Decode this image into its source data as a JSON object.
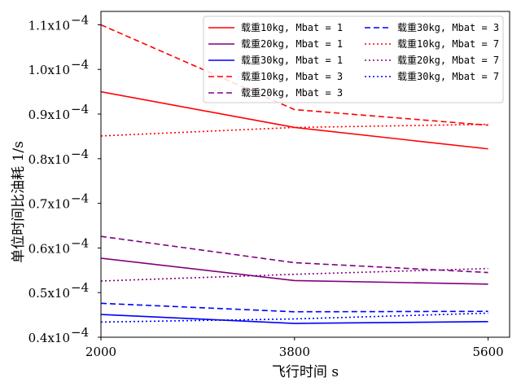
{
  "chart_data": {
    "type": "line",
    "title": "",
    "xlabel": "飞行时间 s",
    "ylabel": "单位时间比油耗 1/s",
    "x": [
      2000,
      3800,
      5600
    ],
    "xlim": [
      2000,
      5800
    ],
    "ylim": [
      0.4,
      1.13
    ],
    "y_tick_values": [
      0.4,
      0.5,
      0.6,
      0.7,
      0.8,
      0.9,
      1.0,
      1.1
    ],
    "y_tick_labels": [
      "0.4x10^-4",
      "0.5x10^-4",
      "0.6x10^-4",
      "0.7x10^-4",
      "0.8x10^-4",
      "0.9x10^-4",
      "1.0x10^-4",
      "1.1x10^-4"
    ],
    "y_tick_mantissas": [
      "0.4x10",
      "0.5x10",
      "0.6x10",
      "0.7x10",
      "0.8x10",
      "0.9x10",
      "1.0x10",
      "1.1x10"
    ],
    "y_tick_exponent": "−4",
    "x_tick_labels": [
      "2000",
      "3800",
      "5600"
    ],
    "y_unit_scale": "1e-4",
    "legend_position": "top-right",
    "grid": false,
    "series": [
      {
        "name": "载重10kg, Mbat = 1",
        "color": "#ff0000",
        "style": "solid",
        "values": [
          0.95,
          0.87,
          0.822
        ]
      },
      {
        "name": "载重20kg, Mbat = 1",
        "color": "#800080",
        "style": "solid",
        "values": [
          0.577,
          0.527,
          0.519
        ]
      },
      {
        "name": "载重30kg, Mbat = 1",
        "color": "#0000ff",
        "style": "solid",
        "values": [
          0.451,
          0.431,
          0.435
        ]
      },
      {
        "name": "载重10kg, Mbat = 3",
        "color": "#ff0000",
        "style": "dashed",
        "values": [
          1.1,
          0.91,
          0.875
        ]
      },
      {
        "name": "载重20kg, Mbat = 3",
        "color": "#800080",
        "style": "dashed",
        "values": [
          0.626,
          0.567,
          0.545
        ]
      },
      {
        "name": "载重30kg, Mbat = 3",
        "color": "#0000ff",
        "style": "dashed",
        "values": [
          0.476,
          0.457,
          0.458
        ]
      },
      {
        "name": "载重10kg, Mbat = 7",
        "color": "#ff0000",
        "style": "dotted",
        "values": [
          0.851,
          0.87,
          0.877
        ]
      },
      {
        "name": "载重20kg, Mbat = 7",
        "color": "#800080",
        "style": "dotted",
        "values": [
          0.526,
          0.541,
          0.554
        ]
      },
      {
        "name": "载重30kg, Mbat = 7",
        "color": "#0000ff",
        "style": "dotted",
        "values": [
          0.434,
          0.441,
          0.454
        ]
      }
    ]
  }
}
